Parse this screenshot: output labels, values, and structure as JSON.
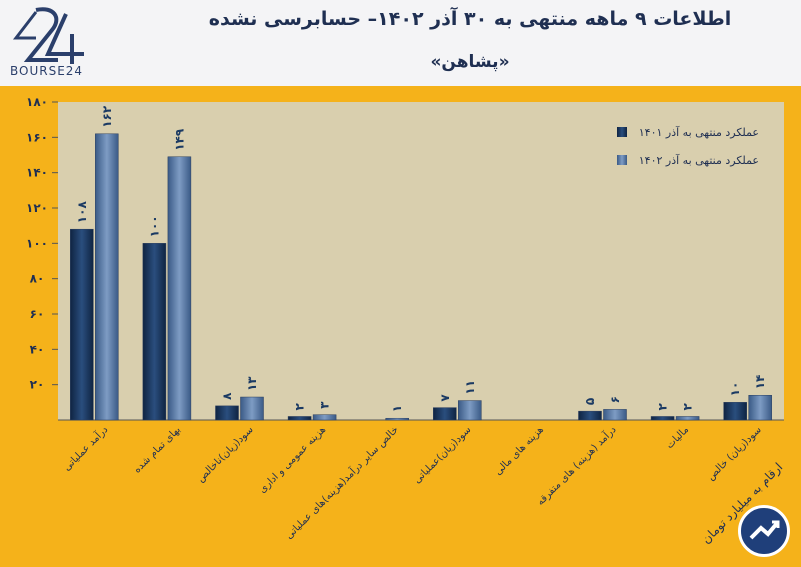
{
  "header": {
    "title": "اطلاعات ۹ ماهه منتهی به ۳۰ آذر ۱۴۰۲– حسابرسی نشده",
    "subtitle": "«پشاهن»",
    "logo_text": "BOURSE24"
  },
  "footer": {
    "units_note": "ارقام به میلیارد تومان"
  },
  "colors": {
    "frame": "#f5b21a",
    "plot_bg": "#d9cfae",
    "series1": "#1b3a63",
    "series2": "#4e6f99"
  },
  "chart_data": {
    "type": "bar",
    "title": "اطلاعات ۹ ماهه منتهی به ۳۰ آذر ۱۴۰۲– حسابرسی نشده",
    "ylim": [
      0,
      180
    ],
    "yticks": [
      {
        "value": 20,
        "label": "۲۰"
      },
      {
        "value": 40,
        "label": "۴۰"
      },
      {
        "value": 60,
        "label": "۶۰"
      },
      {
        "value": 80,
        "label": "۸۰"
      },
      {
        "value": 100,
        "label": "۱۰۰"
      },
      {
        "value": 120,
        "label": "۱۲۰"
      },
      {
        "value": 140,
        "label": "۱۴۰"
      },
      {
        "value": 160,
        "label": "۱۶۰"
      },
      {
        "value": 180,
        "label": "۱۸۰"
      }
    ],
    "categories": [
      "درآمد عملیاتی",
      "بهای تمام شده",
      "سود(زیان)ناخالص",
      "هزینه عمومی و اداری",
      "خالص سایر درآمد(هزینه)های عملیاتی",
      "سود(زیان)عملیاتی",
      "هزینه های مالی",
      "درآمد (هزینه) های متفرقه",
      "مالیات",
      "سود(زیان) خالص"
    ],
    "series": [
      {
        "name": "عملکرد منتهی به آذر ۱۴۰۱",
        "values": [
          108,
          100,
          8,
          2,
          null,
          7,
          null,
          5,
          2,
          10
        ],
        "labels": [
          "۱۰۸",
          "۱۰۰",
          "۸",
          "۲",
          "",
          "۷",
          "",
          "۵",
          "۲",
          "۱۰"
        ]
      },
      {
        "name": "عملکرد منتهی به آذر ۱۴۰۲",
        "values": [
          162,
          149,
          13,
          3,
          1,
          11,
          null,
          6,
          2,
          14
        ],
        "labels": [
          "۱۶۲",
          "۱۴۹",
          "۱۳",
          "۳",
          "۱",
          "۱۱",
          "",
          "۶",
          "۲",
          "۱۴"
        ]
      }
    ],
    "legend_position": "top-right"
  }
}
